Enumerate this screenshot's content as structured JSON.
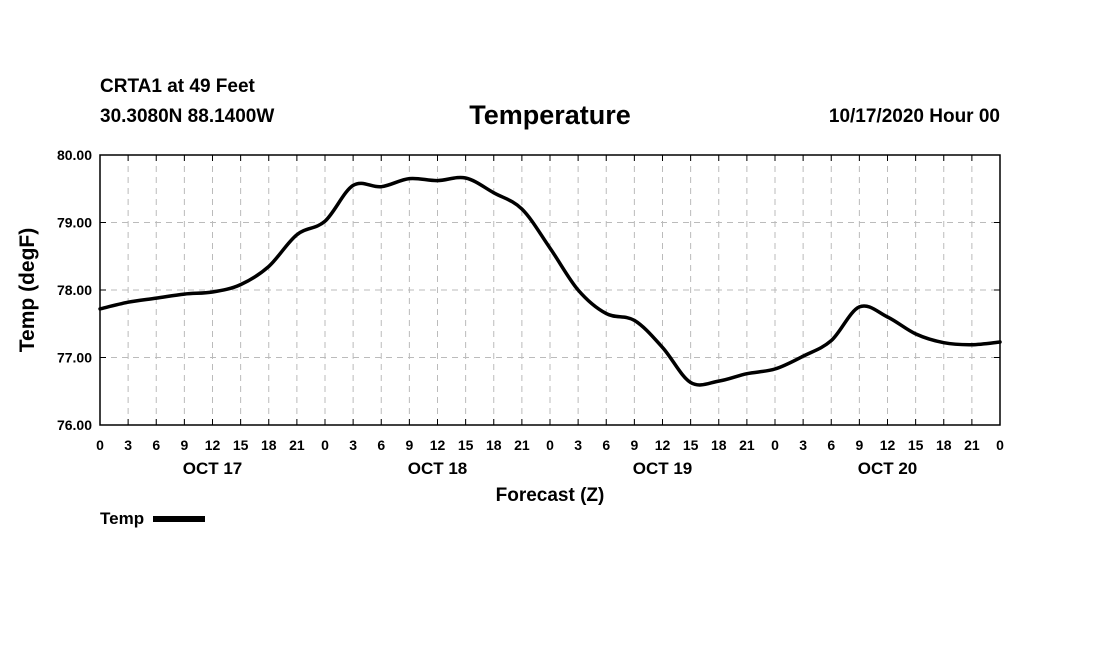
{
  "header": {
    "station": "CRTA1 at 49 Feet",
    "coords": "30.3080N 88.1400W",
    "title": "Temperature",
    "run_time": "10/17/2020 Hour 00"
  },
  "chart_data": {
    "type": "line",
    "title": "Temperature",
    "xlabel": "Forecast (Z)",
    "ylabel": "Temp (degF)",
    "ylim": [
      76.0,
      80.0
    ],
    "xlim": [
      0,
      96
    ],
    "y_ticks": [
      "76.00",
      "77.00",
      "78.00",
      "79.00",
      "80.00"
    ],
    "y_tick_values": [
      76,
      77,
      78,
      79,
      80
    ],
    "x_tick_labels": [
      "0",
      "3",
      "6",
      "9",
      "12",
      "15",
      "18",
      "21",
      "0",
      "3",
      "6",
      "9",
      "12",
      "15",
      "18",
      "21",
      "0",
      "3",
      "6",
      "9",
      "12",
      "15",
      "18",
      "21",
      "0",
      "3",
      "6",
      "9",
      "12",
      "15",
      "18",
      "21",
      "0"
    ],
    "day_labels": [
      {
        "label": "OCT 17",
        "hour": 12
      },
      {
        "label": "OCT 18",
        "hour": 36
      },
      {
        "label": "OCT 19",
        "hour": 60
      },
      {
        "label": "OCT 20",
        "hour": 84
      }
    ],
    "grid": true,
    "legend_position": "bottom-left",
    "series": [
      {
        "name": "Temp",
        "color": "#000000",
        "x": [
          0,
          3,
          6,
          9,
          12,
          15,
          18,
          21,
          24,
          27,
          30,
          33,
          36,
          39,
          42,
          45,
          48,
          51,
          54,
          57,
          60,
          63,
          66,
          69,
          72,
          75,
          78,
          81,
          84,
          87,
          90,
          93,
          96
        ],
        "values": [
          77.72,
          77.82,
          77.88,
          77.94,
          77.97,
          78.08,
          78.35,
          78.82,
          79.02,
          79.55,
          79.53,
          79.65,
          79.62,
          79.66,
          79.44,
          79.2,
          78.62,
          78.0,
          77.65,
          77.55,
          77.15,
          76.63,
          76.65,
          76.76,
          76.83,
          77.02,
          77.25,
          77.75,
          77.6,
          77.35,
          77.22,
          77.19,
          77.23
        ]
      }
    ]
  },
  "legend": {
    "label": "Temp"
  }
}
